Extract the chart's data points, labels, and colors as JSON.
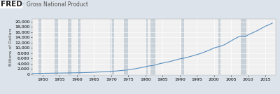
{
  "title": "Gross National Product",
  "ylabel": "Billions of Dollars",
  "x_start": 1947,
  "x_end": 2017,
  "x_ticks": [
    1950,
    1955,
    1960,
    1965,
    1970,
    1975,
    1980,
    1985,
    1990,
    1995,
    2000,
    2005,
    2010,
    2015
  ],
  "y_ticks": [
    0,
    2000,
    4000,
    6000,
    8000,
    10000,
    12000,
    14000,
    16000,
    18000,
    20000
  ],
  "ylim": [
    -400,
    21000
  ],
  "xlim": [
    1947,
    2018
  ],
  "background_color": "#dce3ea",
  "plot_bg_color": "#f0f0f0",
  "line_color": "#5a8fc0",
  "grid_color": "#ffffff",
  "shade_color": "#c8d0d8",
  "recession_bands": [
    [
      1948.9,
      1949.75
    ],
    [
      1953.5,
      1954.5
    ],
    [
      1957.5,
      1958.5
    ],
    [
      1960.2,
      1961.0
    ],
    [
      1969.9,
      1970.9
    ],
    [
      1973.8,
      1975.2
    ],
    [
      1980.0,
      1980.6
    ],
    [
      1981.5,
      1982.9
    ],
    [
      1990.5,
      1991.3
    ],
    [
      2001.2,
      2001.9
    ],
    [
      2007.9,
      2009.5
    ]
  ],
  "gnp_years": [
    1947,
    1948,
    1949,
    1950,
    1951,
    1952,
    1953,
    1954,
    1955,
    1956,
    1957,
    1958,
    1959,
    1960,
    1961,
    1962,
    1963,
    1964,
    1965,
    1966,
    1967,
    1968,
    1969,
    1970,
    1971,
    1972,
    1973,
    1974,
    1975,
    1976,
    1977,
    1978,
    1979,
    1980,
    1981,
    1982,
    1983,
    1984,
    1985,
    1986,
    1987,
    1988,
    1989,
    1990,
    1991,
    1992,
    1993,
    1994,
    1995,
    1996,
    1997,
    1998,
    1999,
    2000,
    2001,
    2002,
    2003,
    2004,
    2005,
    2006,
    2007,
    2008,
    2009,
    2010,
    2011,
    2012,
    2013,
    2014,
    2015,
    2016,
    2017
  ],
  "gnp_values": [
    244,
    269,
    267,
    293,
    339,
    358,
    379,
    381,
    414,
    437,
    461,
    467,
    507,
    527,
    545,
    586,
    618,
    664,
    720,
    789,
    833,
    910,
    982,
    1040,
    1128,
    1238,
    1383,
    1501,
    1635,
    1824,
    2031,
    2296,
    2563,
    2789,
    3128,
    3255,
    3537,
    3933,
    4218,
    4460,
    4736,
    5100,
    5482,
    5803,
    5986,
    6319,
    6642,
    7054,
    7401,
    7814,
    8318,
    8782,
    9353,
    9951,
    10286,
    10642,
    11142,
    11868,
    12638,
    13399,
    14078,
    14441,
    14256,
    14964,
    15518,
    16163,
    16768,
    17528,
    18225,
    18715,
    19391
  ],
  "title_fontsize": 5.5,
  "tick_fontsize": 4.5,
  "ylabel_fontsize": 4.5,
  "line_width": 0.8,
  "fred_fontsize": 7.5
}
